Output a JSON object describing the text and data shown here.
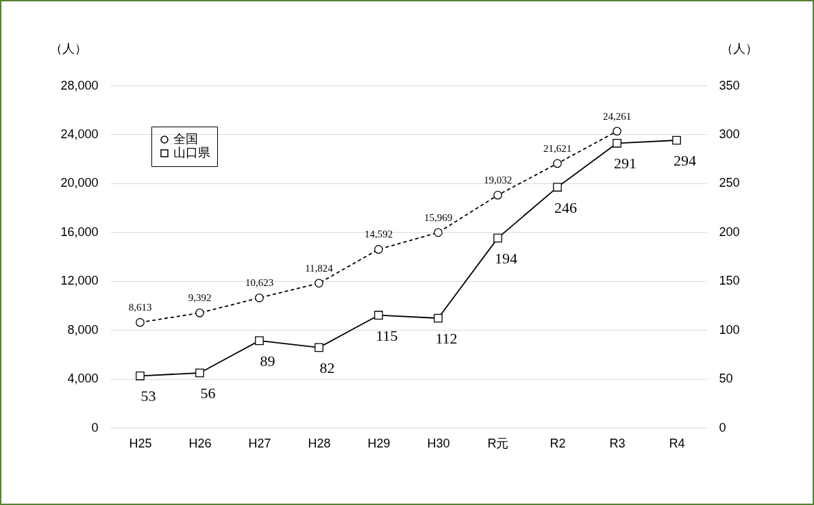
{
  "chart_data": {
    "type": "line",
    "categories": [
      "H25",
      "H26",
      "H27",
      "H28",
      "H29",
      "H30",
      "R元",
      "R2",
      "R3",
      "R4"
    ],
    "ylabel": "（人）",
    "y2label": "（人）",
    "ylim": [
      0,
      28000
    ],
    "yticks": [
      0,
      {
        "value": 4000,
        "label": "4,000"
      },
      {
        "value": 8000,
        "label": "8,000"
      },
      {
        "value": 12000,
        "label": "12,000"
      },
      {
        "value": 16000,
        "label": "16,000"
      },
      {
        "value": 20000,
        "label": "20,000"
      },
      {
        "value": 24000,
        "label": "24,000"
      },
      {
        "value": 28000,
        "label": "28,000"
      }
    ],
    "y2lim": [
      0,
      350
    ],
    "y2ticks": [
      0,
      50,
      100,
      150,
      200,
      250,
      300,
      350
    ],
    "grid": "y",
    "legend": "top left",
    "series": [
      {
        "name": "全国",
        "color": "#000000",
        "line_style": "dashed",
        "marker": "circle",
        "values": [
          8613,
          9392,
          10623,
          11824,
          14592,
          15969,
          19032,
          21621,
          24261,
          null
        ],
        "value_labels": [
          "8,613",
          "9,392",
          "10,623",
          "11,824",
          "14,592",
          "15,969",
          "19,032",
          "21,621",
          "24,261",
          null
        ]
      },
      {
        "name": "山口県",
        "color": "#000000",
        "line_style": "solid",
        "marker": "square",
        "axis": "y2",
        "values": [
          53,
          56,
          89,
          82,
          115,
          112,
          194,
          246,
          291,
          294
        ],
        "value_labels": [
          "53",
          "56",
          "89",
          "82",
          "115",
          "112",
          "194",
          "246",
          "291",
          "294"
        ]
      }
    ]
  }
}
